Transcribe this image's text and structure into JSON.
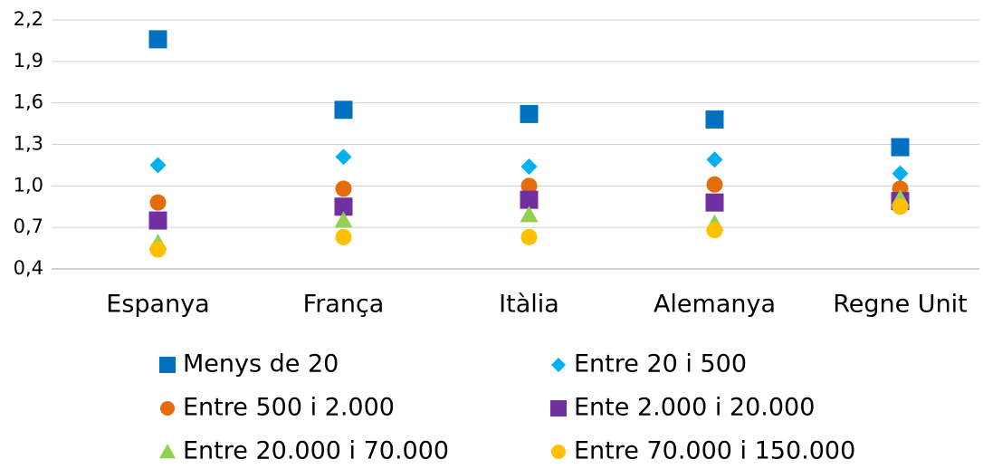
{
  "chart_data": {
    "type": "scatter",
    "categories": [
      "Espanya",
      "França",
      "Itàlia",
      "Alemanya",
      "Regne Unit"
    ],
    "series": [
      {
        "name": "Menys de 20",
        "color": "#0070c0",
        "marker": "square",
        "values": [
          2.06,
          1.55,
          1.52,
          1.48,
          1.28
        ]
      },
      {
        "name": "Entre 20 i 500",
        "color": "#00b0f0",
        "marker": "diamond",
        "values": [
          1.15,
          1.21,
          1.14,
          1.19,
          1.09
        ]
      },
      {
        "name": "Entre 500 i 2.000",
        "color": "#e46c0a",
        "marker": "circle",
        "values": [
          0.88,
          0.98,
          1.0,
          1.01,
          0.98
        ]
      },
      {
        "name": "Ente 2.000 i 20.000",
        "color": "#7030a0",
        "marker": "square",
        "values": [
          0.75,
          0.85,
          0.9,
          0.88,
          0.89
        ]
      },
      {
        "name": "Entre 20.000 i 70.000",
        "color": "#92d050",
        "marker": "triangle",
        "values": [
          0.59,
          0.75,
          0.79,
          0.73,
          0.91
        ]
      },
      {
        "name": "Entre 70.000 i 150.000",
        "color": "#ffc000",
        "marker": "circle",
        "values": [
          0.54,
          0.63,
          0.63,
          0.68,
          0.85
        ]
      }
    ],
    "ylim": [
      0.4,
      2.2
    ],
    "yticks": [
      {
        "value": 0.4,
        "label": "0,4"
      },
      {
        "value": 0.7,
        "label": "0,7"
      },
      {
        "value": 1.0,
        "label": "1,0"
      },
      {
        "value": 1.3,
        "label": "1,3"
      },
      {
        "value": 1.6,
        "label": "1,6"
      },
      {
        "value": 1.9,
        "label": "1,9"
      },
      {
        "value": 2.2,
        "label": "2,2"
      }
    ],
    "grid": true
  }
}
